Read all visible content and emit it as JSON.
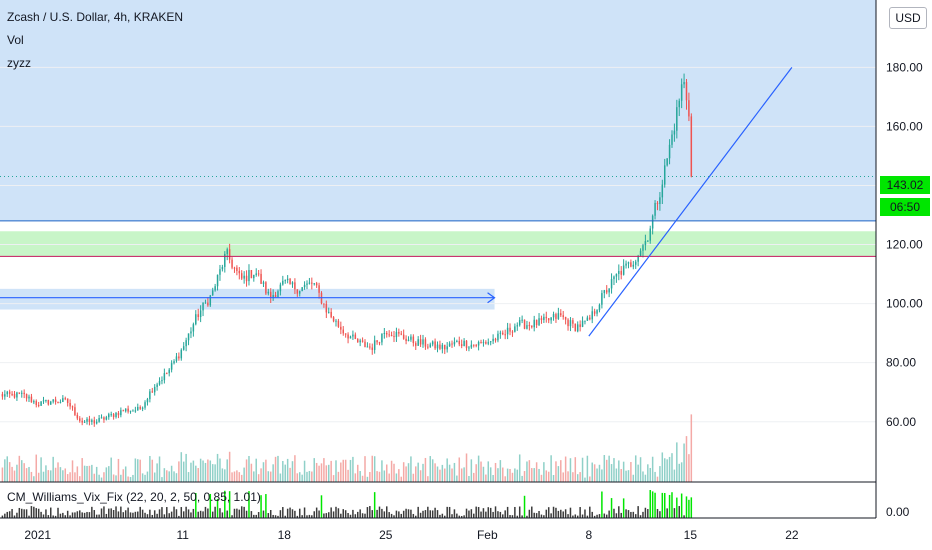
{
  "header": {
    "symbol": "Zcash / U.S. Dollar, 4h, KRAKEN",
    "vol_label": "Vol",
    "script_label": "zyzz"
  },
  "currency_button": "USD",
  "price_badge": {
    "price": "143.02",
    "countdown": "06:50"
  },
  "indicator": {
    "label": "CM_Williams_Vix_Fix (22, 20, 2, 50, 0.85, 1.01)",
    "axis_label": "0.00"
  },
  "colors": {
    "up": "#26a69a",
    "down": "#ef5350",
    "zone_blue": "#cfe3f8",
    "zone_green": "#c8f5c8",
    "trendline": "#2962ff",
    "volume_up": "#8fd0c8",
    "volume_down": "#f4a9a6",
    "vix_bar": "#00e600"
  },
  "chart_data": {
    "type": "candlestick",
    "title": "Zcash / U.S. Dollar, 4h, KRAKEN",
    "y_ticks": [
      "180.00",
      "160.00",
      "140.00",
      "120.00",
      "100.00",
      "80.00",
      "60.00"
    ],
    "y_tick_values": [
      180,
      160,
      140,
      120,
      100,
      80,
      60
    ],
    "x_ticks": [
      "2021",
      "11",
      "18",
      "25",
      "Feb",
      "8",
      "15",
      "22"
    ],
    "x_tick_days": [
      1,
      11,
      18,
      25,
      32,
      39,
      46,
      53
    ],
    "x_range_days": [
      -1.6,
      58.8
    ],
    "y_range": [
      39.6,
      202.8
    ],
    "last_price": 143.02,
    "anchors": [
      [
        -1.6,
        69
      ],
      [
        0,
        69
      ],
      [
        1,
        66
      ],
      [
        2,
        67
      ],
      [
        3,
        67
      ],
      [
        4,
        60
      ],
      [
        5,
        60
      ],
      [
        6,
        62
      ],
      [
        7,
        64
      ],
      [
        8,
        64
      ],
      [
        9,
        72
      ],
      [
        10,
        77
      ],
      [
        11,
        85
      ],
      [
        12,
        96
      ],
      [
        13,
        103
      ],
      [
        14,
        117
      ],
      [
        15,
        108
      ],
      [
        16,
        111
      ],
      [
        17,
        102
      ],
      [
        18,
        107
      ],
      [
        19,
        105
      ],
      [
        20,
        107
      ],
      [
        21,
        97
      ],
      [
        22,
        91
      ],
      [
        23,
        87
      ],
      [
        24,
        85
      ],
      [
        25,
        91
      ],
      [
        26,
        89
      ],
      [
        27,
        87
      ],
      [
        28,
        86
      ],
      [
        29,
        85
      ],
      [
        30,
        87
      ],
      [
        31,
        86
      ],
      [
        32,
        87
      ],
      [
        33,
        89
      ],
      [
        34,
        93
      ],
      [
        35,
        93
      ],
      [
        36,
        94
      ],
      [
        37,
        96
      ],
      [
        38,
        92
      ],
      [
        39,
        94
      ],
      [
        40,
        103
      ],
      [
        41,
        110
      ],
      [
        42,
        114
      ],
      [
        43,
        122
      ],
      [
        44,
        140
      ],
      [
        45,
        163
      ],
      [
        45.5,
        176
      ],
      [
        46,
        163
      ],
      [
        46.2,
        144
      ]
    ],
    "zones": [
      {
        "label": "blue zone",
        "y_from": 128,
        "y_to": 202.8,
        "day_from": -1.6,
        "day_to": 58.8
      },
      {
        "label": "green zone",
        "y_from": 116,
        "y_to": 124.5,
        "day_from": -1.6,
        "day_to": 58.8
      },
      {
        "label": "blue band",
        "y_from": 98,
        "y_to": 105,
        "day_from": -1.6,
        "day_to": 32.5
      }
    ],
    "lines": [
      {
        "label": "horizontal level",
        "y": 128
      },
      {
        "label": "horizontal level",
        "y": 116
      },
      {
        "label": "trendline",
        "from": [
          39,
          89
        ],
        "to": [
          53,
          180
        ]
      },
      {
        "label": "arrow",
        "from": [
          -1.6,
          102
        ],
        "to": [
          32.5,
          102
        ]
      }
    ]
  }
}
